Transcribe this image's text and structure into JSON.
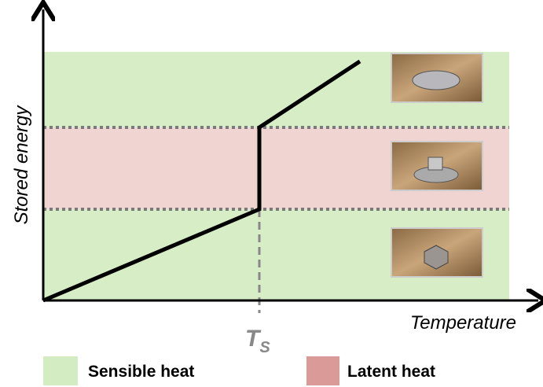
{
  "axes": {
    "y_label": "Stored energy",
    "x_label": "Temperature",
    "threshold": {
      "main": "T",
      "sub": "S"
    }
  },
  "legend": [
    {
      "label": "Sensible heat"
    },
    {
      "label": "Latent heat"
    }
  ]
}
